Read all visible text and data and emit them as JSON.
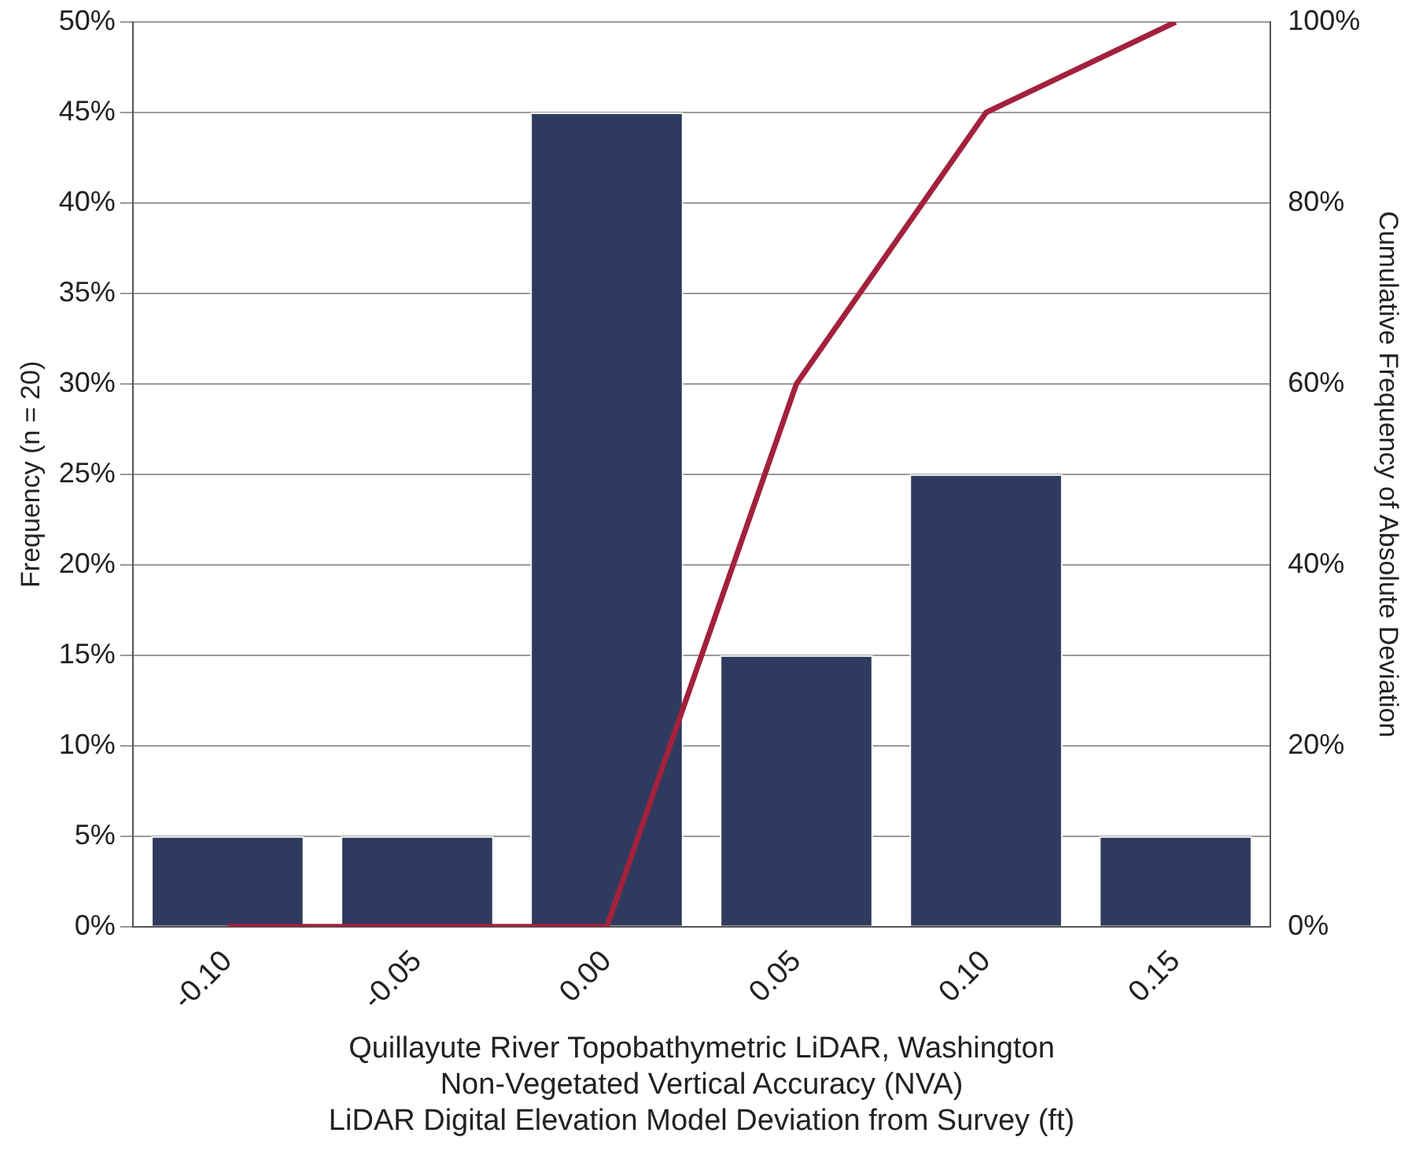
{
  "chart_data": {
    "type": "bar",
    "categories": [
      "-0.10",
      "-0.05",
      "0.00",
      "0.05",
      "0.10",
      "0.15"
    ],
    "series": [
      {
        "color": "#2f3b5e",
        "values": [
          5,
          5,
          45,
          15,
          25,
          5
        ]
      },
      {
        "type": "line",
        "axis": "y2",
        "color": "#a3213c",
        "values": [
          0,
          0,
          0,
          60,
          90,
          100
        ]
      }
    ],
    "xlabel": "Quillayute River Topobathymetric LiDAR, Washington\nNon-Vegetated Vertical Accuracy (NVA)\nLiDAR Digital Elevation Model Deviation from Survey (ft)",
    "ylabel": "Frequency (n = 20)",
    "y2label": "Cumulative Frequency of Absolute Deviation",
    "ylim": [
      0,
      50
    ],
    "yticks": [
      {
        "value": 0,
        "label": "0%"
      },
      {
        "value": 5,
        "label": "5%"
      },
      {
        "value": 10,
        "label": "10%"
      },
      {
        "value": 15,
        "label": "15%"
      },
      {
        "value": 20,
        "label": "20%"
      },
      {
        "value": 25,
        "label": "25%"
      },
      {
        "value": 30,
        "label": "30%"
      },
      {
        "value": 35,
        "label": "35%"
      },
      {
        "value": 40,
        "label": "40%"
      },
      {
        "value": 45,
        "label": "45%"
      },
      {
        "value": 50,
        "label": "50%"
      }
    ],
    "y2lim": [
      0,
      100
    ],
    "y2ticks": [
      {
        "value": 0,
        "label": "0%"
      },
      {
        "value": 20,
        "label": "20%"
      },
      {
        "value": 40,
        "label": "40%"
      },
      {
        "value": 60,
        "label": "60%"
      },
      {
        "value": 80,
        "label": "80%"
      },
      {
        "value": 100,
        "label": "100%"
      }
    ],
    "grid": "y",
    "legend": false,
    "marker": "none",
    "line_style": "solid"
  }
}
